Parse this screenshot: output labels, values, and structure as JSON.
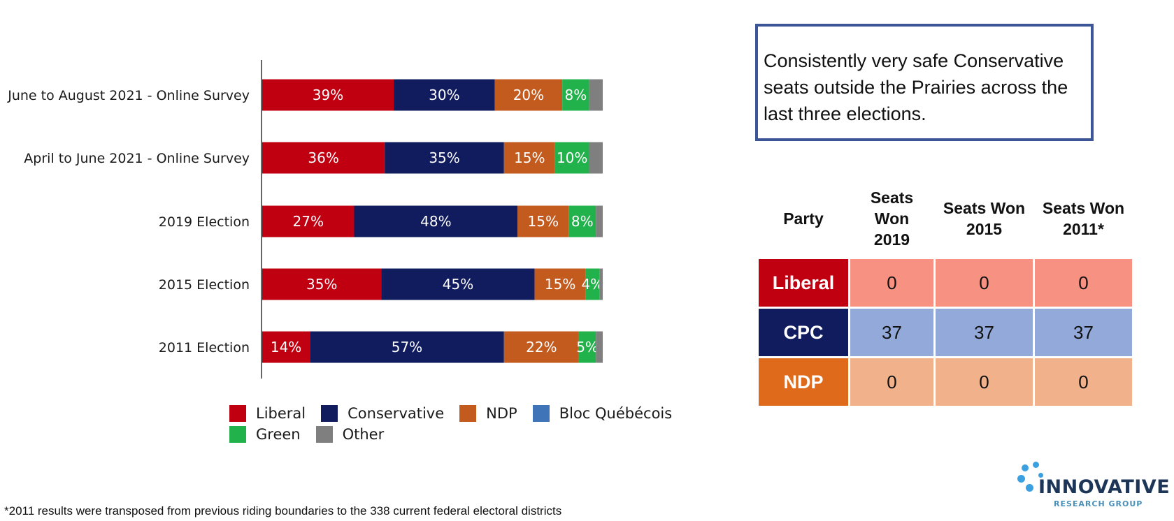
{
  "chart_data": {
    "type": "bar",
    "orientation": "horizontal",
    "stacked": true,
    "title": "",
    "xlabel": "",
    "ylabel": "",
    "xlim": [
      0,
      100
    ],
    "grid": false,
    "legend_position": "bottom",
    "categories": [
      "June to August 2021 - Online Survey",
      "April to June 2021 - Online Survey",
      "2019 Election",
      "2015 Election",
      "2011 Election"
    ],
    "series": [
      {
        "name": "Liberal",
        "color": "#c00010",
        "values": [
          39,
          36,
          27,
          35,
          14
        ],
        "labels": [
          "39%",
          "36%",
          "27%",
          "35%",
          "14%"
        ]
      },
      {
        "name": "Conservative",
        "color": "#111c5e",
        "values": [
          30,
          35,
          48,
          45,
          57
        ],
        "labels": [
          "30%",
          "35%",
          "48%",
          "45%",
          "57%"
        ]
      },
      {
        "name": "NDP",
        "color": "#c35a1e",
        "values": [
          20,
          15,
          15,
          15,
          22
        ],
        "labels": [
          "20%",
          "15%",
          "15%",
          "15%",
          "22%"
        ]
      },
      {
        "name": "Bloc Québécois",
        "color": "#3f74b8",
        "values": [
          0,
          0,
          0,
          0,
          0
        ],
        "labels": [
          "",
          "",
          "",
          "",
          ""
        ]
      },
      {
        "name": "Green",
        "color": "#22b24c",
        "values": [
          8,
          10,
          8,
          4,
          5
        ],
        "labels": [
          "8%",
          "10%",
          "8%",
          "4%",
          "5%"
        ]
      },
      {
        "name": "Other",
        "color": "#7f7f7f",
        "values": [
          4,
          4,
          2,
          1,
          2
        ],
        "labels": [
          "",
          "",
          "",
          "",
          ""
        ]
      }
    ]
  },
  "legend": {
    "items": [
      {
        "name": "Liberal",
        "color": "#c00010"
      },
      {
        "name": "Conservative",
        "color": "#111c5e"
      },
      {
        "name": "NDP",
        "color": "#c35a1e"
      },
      {
        "name": "Bloc Québécois",
        "color": "#3f74b8"
      },
      {
        "name": "Green",
        "color": "#22b24c"
      },
      {
        "name": "Other",
        "color": "#7f7f7f"
      }
    ]
  },
  "callout": {
    "text": "Consistently very safe Conservative seats outside the Prairies across the last three elections."
  },
  "seats_table": {
    "headers": [
      "Party",
      "Seats Won 2019",
      "Seats Won 2015",
      "Seats Won 2011*"
    ],
    "rows": [
      {
        "party": "Liberal",
        "party_color": "#c00010",
        "cell_color": "#f79282",
        "values": [
          "0",
          "0",
          "0"
        ]
      },
      {
        "party": "CPC",
        "party_color": "#111c5e",
        "cell_color": "#93a9da",
        "values": [
          "37",
          "37",
          "37"
        ]
      },
      {
        "party": "NDP",
        "party_color": "#df6a1c",
        "cell_color": "#f1b18a",
        "values": [
          "0",
          "0",
          "0"
        ]
      }
    ]
  },
  "footnote": "*2011 results were transposed from previous riding boundaries to the 338 current federal electoral districts",
  "logo": {
    "name": "INNOVATIVE",
    "subtitle": "RESEARCH GROUP"
  }
}
